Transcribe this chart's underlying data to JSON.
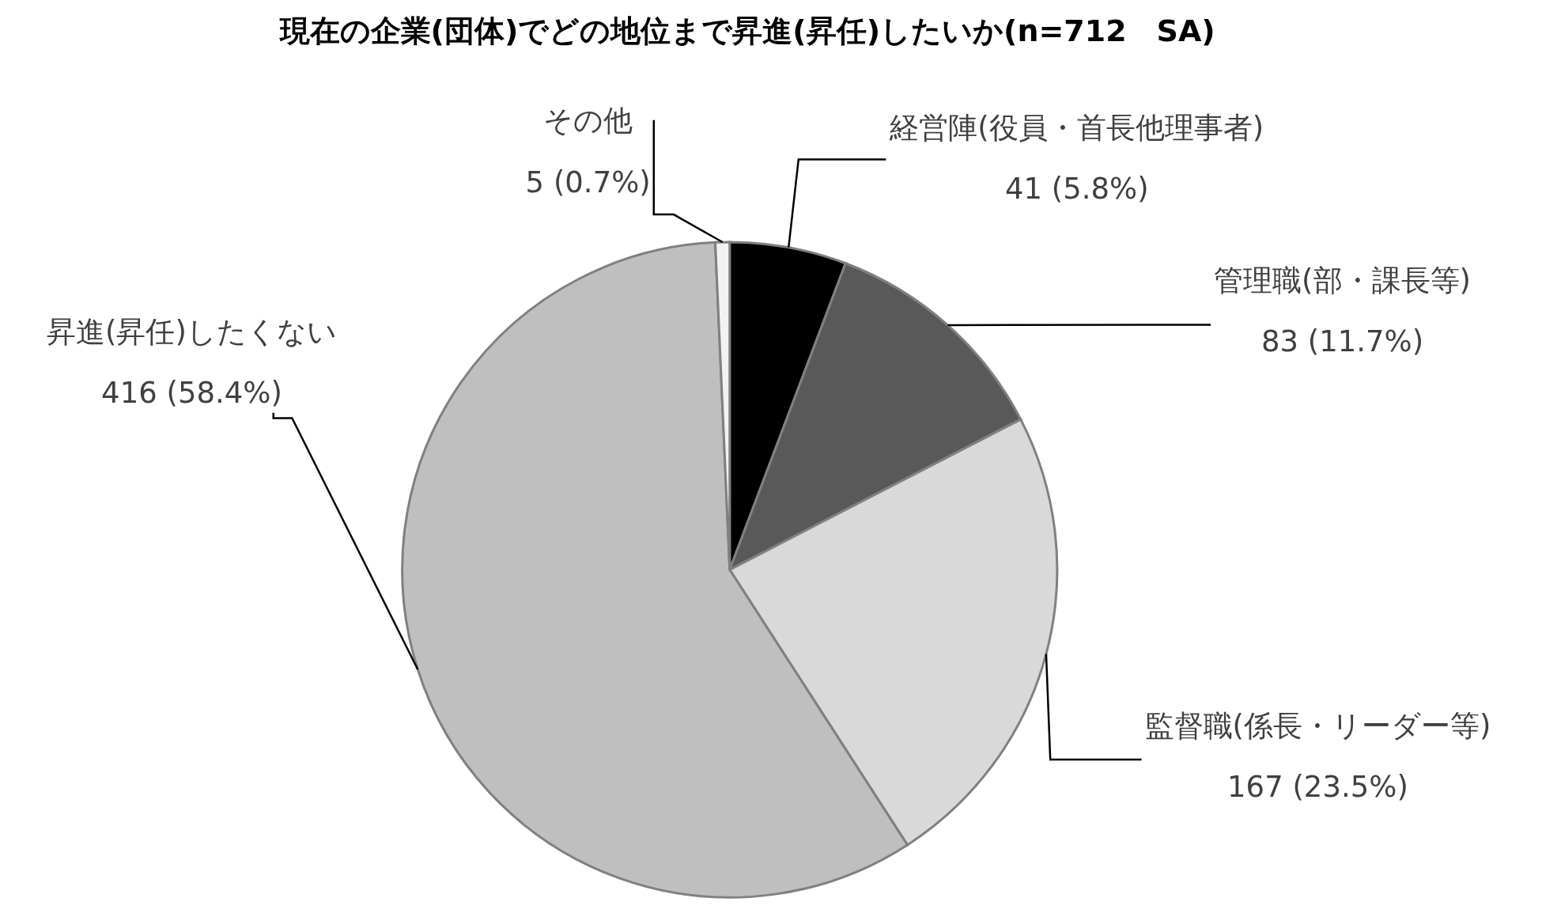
{
  "chart_data": {
    "type": "pie",
    "title": "現在の企業(団体)でどの地位まで昇進(昇任)したいか(n=712　SA)",
    "categories": [
      "経営陣(役員・首長他理事者)",
      "管理職(部・課長等)",
      "監督職(係長・リーダー等)",
      "昇進(昇任)したくない",
      "その他"
    ],
    "values": [
      41,
      83,
      167,
      416,
      5
    ],
    "value_labels": [
      "41 (5.8%)",
      "83 (11.7%)",
      "167 (23.5%)",
      "416 (58.4%)",
      "5 (0.7%)"
    ],
    "colors": [
      "#000000",
      "#595959",
      "#d9d9d9",
      "#bfbfbf",
      "#f2f2f2"
    ],
    "legend": false
  }
}
